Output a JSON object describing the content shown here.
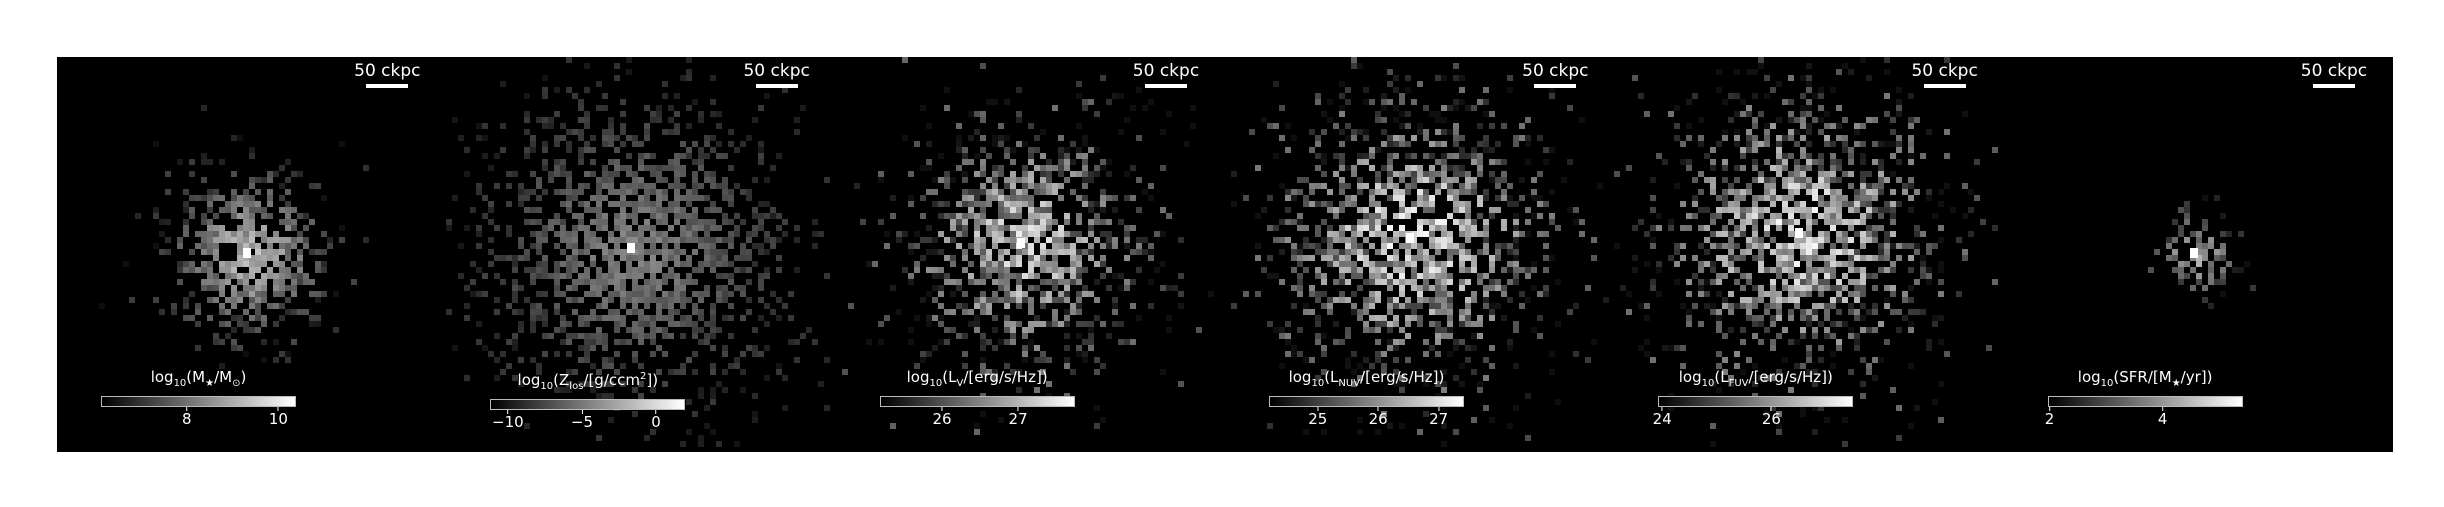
{
  "panels": [
    {
      "scale_label": "50 ckpc",
      "colorbar": {
        "label_parts": {
          "pre": "log",
          "sub": "10",
          "mid": "(M",
          "sub2": "★",
          "post": "/M",
          "sub3": "⊙",
          "end": ")"
        },
        "ticks": [
          {
            "label": "8",
            "frac": 0.44
          },
          {
            "label": "10",
            "frac": 0.91
          }
        ]
      }
    },
    {
      "scale_label": "50 ckpc",
      "colorbar": {
        "label_parts": {
          "pre": "log",
          "sub": "10",
          "mid": "(Z",
          "sub2": "los",
          "post": "/[g/ccm",
          "sup": "2",
          "end": "])"
        },
        "ticks": [
          {
            "label": "−10",
            "frac": 0.09
          },
          {
            "label": "−5",
            "frac": 0.47
          },
          {
            "label": "0",
            "frac": 0.85
          }
        ]
      }
    },
    {
      "scale_label": "50 ckpc",
      "colorbar": {
        "label_parts": {
          "pre": "log",
          "sub": "10",
          "mid": "(L",
          "sub2": "V",
          "post": "/[erg/s/Hz])"
        },
        "ticks": [
          {
            "label": "26",
            "frac": 0.32
          },
          {
            "label": "27",
            "frac": 0.71
          }
        ]
      }
    },
    {
      "scale_label": "50 ckpc",
      "colorbar": {
        "label_parts": {
          "pre": "log",
          "sub": "10",
          "mid": "(L",
          "sub2": "NUV",
          "post": "/[erg/s/Hz])"
        },
        "ticks": [
          {
            "label": "25",
            "frac": 0.25
          },
          {
            "label": "26",
            "frac": 0.56
          },
          {
            "label": "27",
            "frac": 0.87
          }
        ]
      }
    },
    {
      "scale_label": "50 ckpc",
      "colorbar": {
        "label_parts": {
          "pre": "log",
          "sub": "10",
          "mid": "(L",
          "sub2": "FUV",
          "post": "/[erg/s/Hz])"
        },
        "ticks": [
          {
            "label": "24",
            "frac": 0.02
          },
          {
            "label": "26",
            "frac": 0.58
          }
        ]
      }
    },
    {
      "scale_label": "50 ckpc",
      "colorbar": {
        "label_parts": {
          "pre": "log",
          "sub": "10",
          "mid": "(SFR/[M",
          "sub2": "★",
          "post": "/yr])"
        },
        "ticks": [
          {
            "label": "2",
            "frac": 0.01
          },
          {
            "label": "4",
            "frac": 0.59
          }
        ]
      }
    }
  ]
}
